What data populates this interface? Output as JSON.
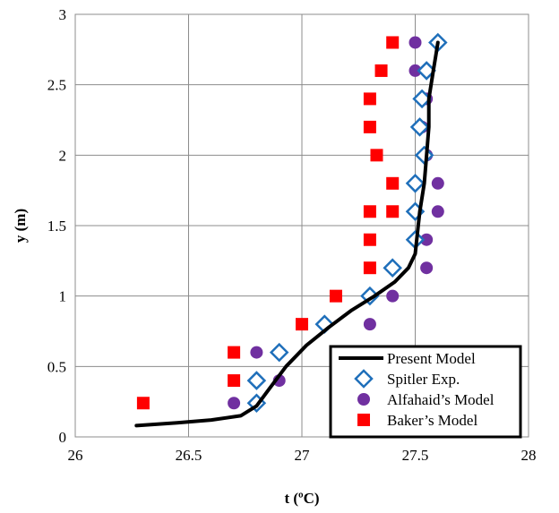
{
  "chart_data": {
    "type": "scatter",
    "title": "",
    "xlabel": "t (ºC)",
    "ylabel": "y (m)",
    "xlim": [
      26,
      28
    ],
    "ylim": [
      0,
      3
    ],
    "xticks": [
      26,
      26.5,
      27,
      27.5,
      28
    ],
    "yticks": [
      0,
      0.5,
      1,
      1.5,
      2,
      2.5,
      3
    ],
    "xtick_labels": [
      "26",
      "26.5",
      "27",
      "27.5",
      "28"
    ],
    "ytick_labels": [
      "0",
      "0.5",
      "1",
      "1.5",
      "2",
      "2.5",
      "3"
    ],
    "grid": "major gridlines",
    "legend_position": "bottom-right",
    "series": [
      {
        "name": "Present Model",
        "kind": "line",
        "color": "#000000",
        "x": [
          26.27,
          26.45,
          26.6,
          26.73,
          26.8,
          26.86,
          26.93,
          27.02,
          27.12,
          27.22,
          27.32,
          27.41,
          27.47,
          27.5,
          27.51,
          27.52,
          27.54,
          27.55,
          27.56,
          27.56,
          27.57,
          27.58,
          27.59,
          27.6
        ],
        "y": [
          0.08,
          0.1,
          0.12,
          0.15,
          0.22,
          0.35,
          0.5,
          0.65,
          0.78,
          0.9,
          1.0,
          1.1,
          1.2,
          1.3,
          1.45,
          1.6,
          1.8,
          2.0,
          2.2,
          2.4,
          2.5,
          2.6,
          2.7,
          2.8
        ]
      },
      {
        "name": "Spitler Exp.",
        "kind": "diamond",
        "color": "#1f6fba",
        "x": [
          26.8,
          26.8,
          26.9,
          27.1,
          27.3,
          27.4,
          27.5,
          27.5,
          27.5,
          27.54,
          27.52,
          27.53,
          27.55,
          27.6
        ],
        "y": [
          0.24,
          0.4,
          0.6,
          0.8,
          1.0,
          1.2,
          1.4,
          1.6,
          1.8,
          2.0,
          2.2,
          2.4,
          2.6,
          2.8
        ]
      },
      {
        "name": "Alfahaid’s Model",
        "kind": "circle",
        "color": "#7030a0",
        "x": [
          26.7,
          26.9,
          26.8,
          27.1,
          27.3,
          27.4,
          27.55,
          27.55,
          27.6,
          27.6,
          27.55,
          27.53,
          27.55,
          27.5,
          27.5
        ],
        "y": [
          0.24,
          0.4,
          0.6,
          0.8,
          0.8,
          1.0,
          1.2,
          1.4,
          1.6,
          1.8,
          2.0,
          2.2,
          2.4,
          2.6,
          2.8
        ]
      },
      {
        "name": "Baker’s Model",
        "kind": "square",
        "color": "#ff0000",
        "x": [
          26.3,
          26.7,
          26.7,
          27.0,
          27.15,
          27.3,
          27.3,
          27.3,
          27.4,
          27.4,
          27.33,
          27.3,
          27.3,
          27.35,
          27.4
        ],
        "y": [
          0.24,
          0.4,
          0.6,
          0.8,
          1.0,
          1.2,
          1.4,
          1.6,
          1.6,
          1.8,
          2.0,
          2.2,
          2.4,
          2.6,
          2.8
        ]
      }
    ]
  }
}
